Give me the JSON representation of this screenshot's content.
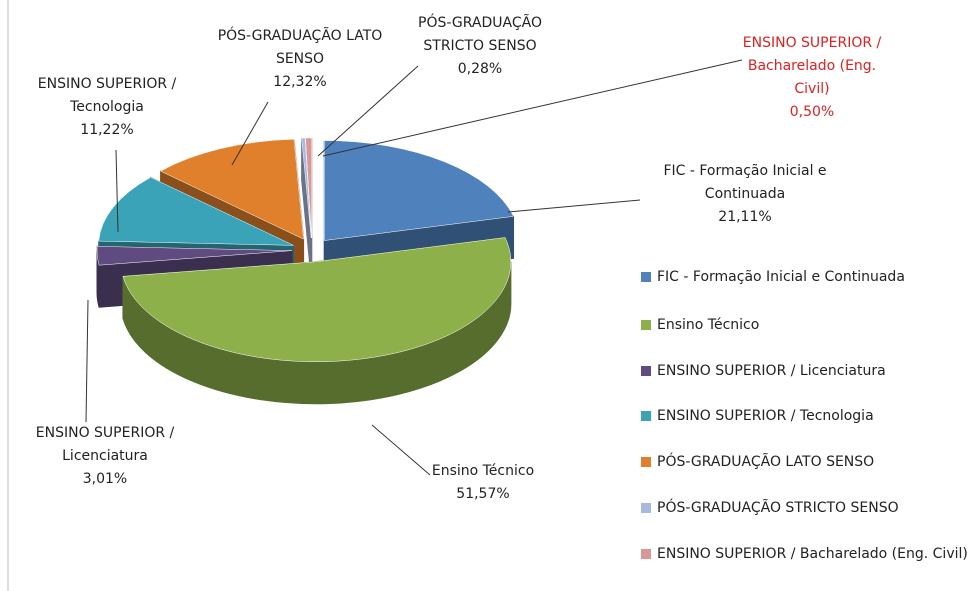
{
  "chart_data": {
    "type": "pie",
    "categories": [
      "FIC - Formação Inicial e Continuada",
      "Ensino Técnico",
      "ENSINO SUPERIOR / Licenciatura",
      "ENSINO SUPERIOR / Tecnologia",
      "PÓS-GRADUAÇÃO LATO SENSO",
      "PÓS-GRADUAÇÃO STRICTO SENSO",
      "ENSINO SUPERIOR / Bacharelado (Eng. Civil)"
    ],
    "values": [
      21.11,
      51.57,
      3.01,
      11.22,
      12.32,
      0.28,
      0.5
    ],
    "value_labels": [
      "21,11%",
      "51,57%",
      "3,01%",
      "11,22%",
      "12,32%",
      "0,28%",
      "0,50%"
    ],
    "colors": [
      "#4f81bd",
      "#8db04a",
      "#5f4b80",
      "#3aa3b8",
      "#e07f2c",
      "#a8b9e0",
      "#d99694"
    ],
    "label_colors": [
      "#222222",
      "#222222",
      "#222222",
      "#222222",
      "#222222",
      "#222222",
      "#e02020"
    ],
    "legend": "right"
  }
}
